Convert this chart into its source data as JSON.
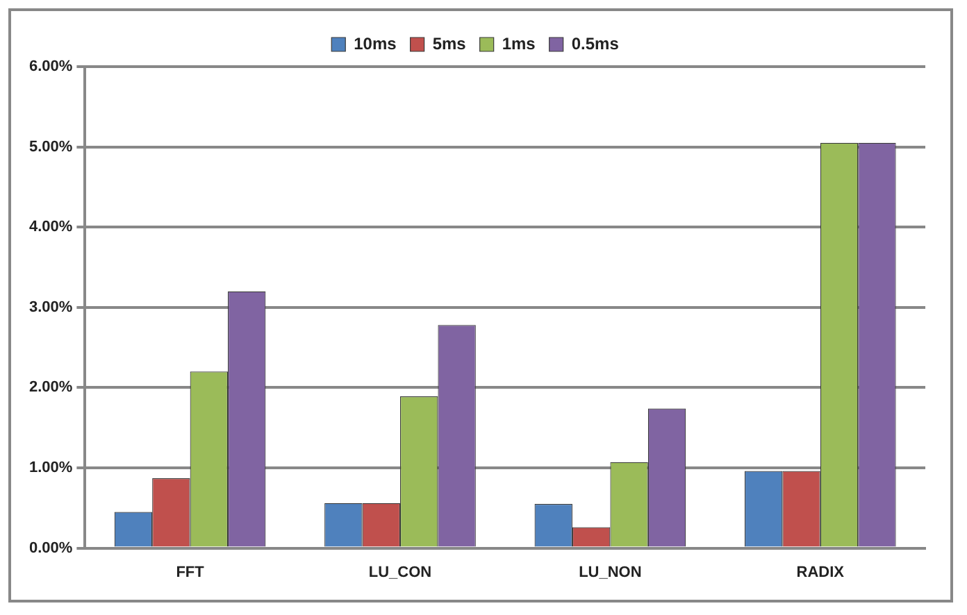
{
  "chart_data": {
    "type": "bar",
    "categories": [
      "FFT",
      "LU_CON",
      "LU_NON",
      "RADIX"
    ],
    "series": [
      {
        "name": "10ms",
        "color": "#4f81bd",
        "values": [
          0.45,
          0.56,
          0.55,
          0.96
        ]
      },
      {
        "name": "5ms",
        "color": "#c0504d",
        "values": [
          0.87,
          0.56,
          0.26,
          0.96
        ]
      },
      {
        "name": "1ms",
        "color": "#9bbb59",
        "values": [
          2.2,
          1.89,
          1.07,
          5.05
        ]
      },
      {
        "name": "0.5ms",
        "color": "#8064a2",
        "values": [
          3.2,
          2.78,
          1.74,
          5.05
        ]
      }
    ],
    "ylim": [
      0,
      6
    ],
    "yticks": [
      {
        "value": 0,
        "label": "0.00%"
      },
      {
        "value": 1,
        "label": "1.00%"
      },
      {
        "value": 2,
        "label": "2.00%"
      },
      {
        "value": 3,
        "label": "3.00%"
      },
      {
        "value": 4,
        "label": "4.00%"
      },
      {
        "value": 5,
        "label": "5.00%"
      },
      {
        "value": 6,
        "label": "6.00%"
      }
    ],
    "grid": "y",
    "legend": "top"
  }
}
